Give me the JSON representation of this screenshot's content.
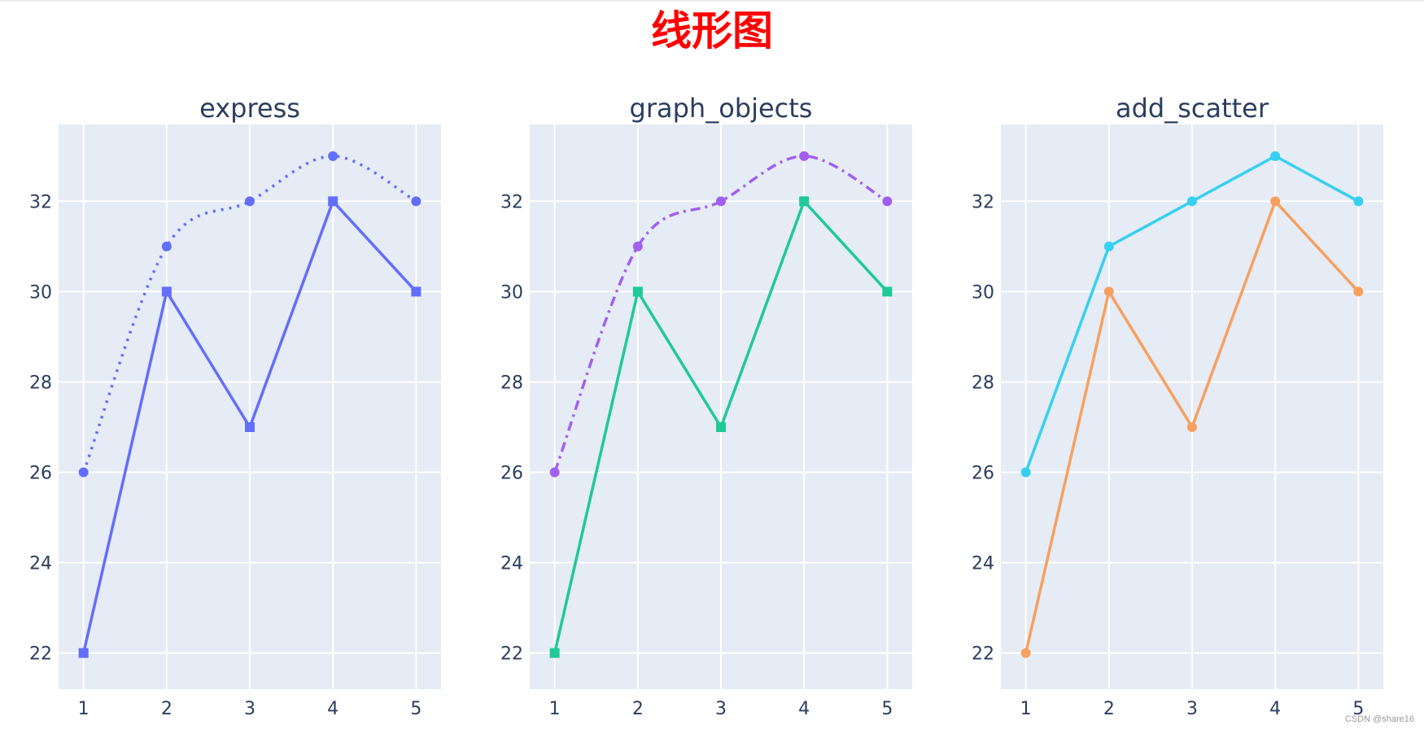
{
  "page": {
    "title": "线形图",
    "watermark": "CSDN @share16"
  },
  "chart_data": [
    {
      "type": "line",
      "title": "express",
      "x": [
        1,
        2,
        3,
        4,
        5
      ],
      "xlim": [
        0.7,
        5.3
      ],
      "ylim": [
        21.2,
        33.7
      ],
      "yticks": [
        22,
        24,
        26,
        28,
        30,
        32
      ],
      "xticks": [
        1,
        2,
        3,
        4,
        5
      ],
      "grid": true,
      "series": [
        {
          "values": [
            22,
            30,
            27,
            32,
            30
          ],
          "color": "#636efa",
          "dash": "solid",
          "shape": "linear",
          "marker": "square"
        },
        {
          "values": [
            26,
            31,
            32,
            33,
            32
          ],
          "color": "#636efa",
          "dash": "dot",
          "shape": "spline",
          "marker": "circle"
        }
      ]
    },
    {
      "type": "line",
      "title": "graph_objects",
      "x": [
        1,
        2,
        3,
        4,
        5
      ],
      "xlim": [
        0.7,
        5.3
      ],
      "ylim": [
        21.2,
        33.7
      ],
      "yticks": [
        22,
        24,
        26,
        28,
        30,
        32
      ],
      "xticks": [
        1,
        2,
        3,
        4,
        5
      ],
      "grid": true,
      "series": [
        {
          "values": [
            22,
            30,
            27,
            32,
            30
          ],
          "color": "#1fc998",
          "dash": "solid",
          "shape": "linear",
          "marker": "square"
        },
        {
          "values": [
            26,
            31,
            32,
            33,
            32
          ],
          "color": "#a15ff0",
          "dash": "dashdot",
          "shape": "spline",
          "marker": "circle"
        }
      ]
    },
    {
      "type": "line",
      "title": "add_scatter",
      "x": [
        1,
        2,
        3,
        4,
        5
      ],
      "xlim": [
        0.7,
        5.3
      ],
      "ylim": [
        21.2,
        33.7
      ],
      "yticks": [
        22,
        24,
        26,
        28,
        30,
        32
      ],
      "xticks": [
        1,
        2,
        3,
        4,
        5
      ],
      "grid": true,
      "series": [
        {
          "values": [
            22,
            30,
            27,
            32,
            30
          ],
          "color": "#f8a060",
          "dash": "solid",
          "shape": "linear",
          "marker": "circle"
        },
        {
          "values": [
            26,
            31,
            32,
            33,
            32
          ],
          "color": "#36d0f0",
          "dash": "solid",
          "shape": "linear",
          "marker": "circle"
        }
      ]
    }
  ]
}
